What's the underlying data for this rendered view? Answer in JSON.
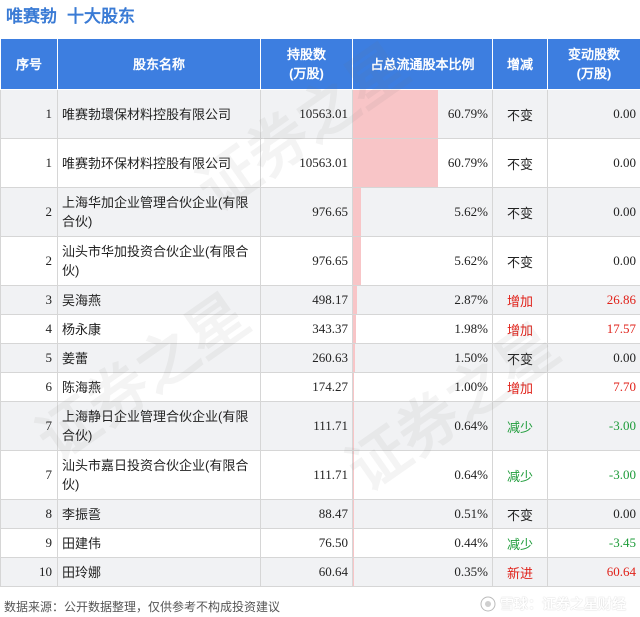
{
  "title": {
    "company": "唯赛勃",
    "section": "十大股东"
  },
  "headers": {
    "idx": "序号",
    "name": "股东名称",
    "shares": "持股数\n(万股)",
    "ratio": "占总流通股本比例",
    "change": "增减",
    "delta": "变动股数\n(万股)"
  },
  "rows": [
    {
      "idx": "1",
      "name": "唯赛勃環保材料控股有限公司",
      "shares": "10563.01",
      "ratio": "60.79%",
      "ratio_value": 60.79,
      "change": "不变",
      "change_color": "#222222",
      "delta": "0.00"
    },
    {
      "idx": "1",
      "name": "唯赛勃环保材料控股有限公司",
      "shares": "10563.01",
      "ratio": "60.79%",
      "ratio_value": 60.79,
      "change": "不变",
      "change_color": "#222222",
      "delta": "0.00"
    },
    {
      "idx": "2",
      "name": "上海华加企业管理合伙企业(有限合伙)",
      "shares": "976.65",
      "ratio": "5.62%",
      "ratio_value": 5.62,
      "change": "不变",
      "change_color": "#222222",
      "delta": "0.00"
    },
    {
      "idx": "2",
      "name": "汕头市华加投资合伙企业(有限合伙)",
      "shares": "976.65",
      "ratio": "5.62%",
      "ratio_value": 5.62,
      "change": "不变",
      "change_color": "#222222",
      "delta": "0.00"
    },
    {
      "idx": "3",
      "name": "吴海燕",
      "shares": "498.17",
      "ratio": "2.87%",
      "ratio_value": 2.87,
      "change": "增加",
      "change_color": "#e0221a",
      "delta": "26.86"
    },
    {
      "idx": "4",
      "name": "杨永康",
      "shares": "343.37",
      "ratio": "1.98%",
      "ratio_value": 1.98,
      "change": "增加",
      "change_color": "#e0221a",
      "delta": "17.57"
    },
    {
      "idx": "5",
      "name": "姜蕾",
      "shares": "260.63",
      "ratio": "1.50%",
      "ratio_value": 1.5,
      "change": "不变",
      "change_color": "#222222",
      "delta": "0.00"
    },
    {
      "idx": "6",
      "name": "陈海燕",
      "shares": "174.27",
      "ratio": "1.00%",
      "ratio_value": 1.0,
      "change": "增加",
      "change_color": "#e0221a",
      "delta": "7.70"
    },
    {
      "idx": "7",
      "name": "上海静日企业管理合伙企业(有限合伙)",
      "shares": "111.71",
      "ratio": "0.64%",
      "ratio_value": 0.64,
      "change": "减少",
      "change_color": "#1e9c3a",
      "delta": "-3.00"
    },
    {
      "idx": "7",
      "name": "汕头市嘉日投资合伙企业(有限合伙)",
      "shares": "111.71",
      "ratio": "0.64%",
      "ratio_value": 0.64,
      "change": "减少",
      "change_color": "#1e9c3a",
      "delta": "-3.00"
    },
    {
      "idx": "8",
      "name": "李振巹",
      "shares": "88.47",
      "ratio": "0.51%",
      "ratio_value": 0.51,
      "change": "不变",
      "change_color": "#222222",
      "delta": "0.00"
    },
    {
      "idx": "9",
      "name": "田建伟",
      "shares": "76.50",
      "ratio": "0.44%",
      "ratio_value": 0.44,
      "change": "减少",
      "change_color": "#1e9c3a",
      "delta": "-3.45"
    },
    {
      "idx": "10",
      "name": "田玲娜",
      "shares": "60.64",
      "ratio": "0.35%",
      "ratio_value": 0.35,
      "change": "新进",
      "change_color": "#e0221a",
      "delta": "60.64"
    }
  ],
  "footer": {
    "source": "数据来源：公开数据整理，仅供参考不构成投资建议",
    "brand": "雪球：证券之星财经"
  },
  "watermark": "证券之星"
}
